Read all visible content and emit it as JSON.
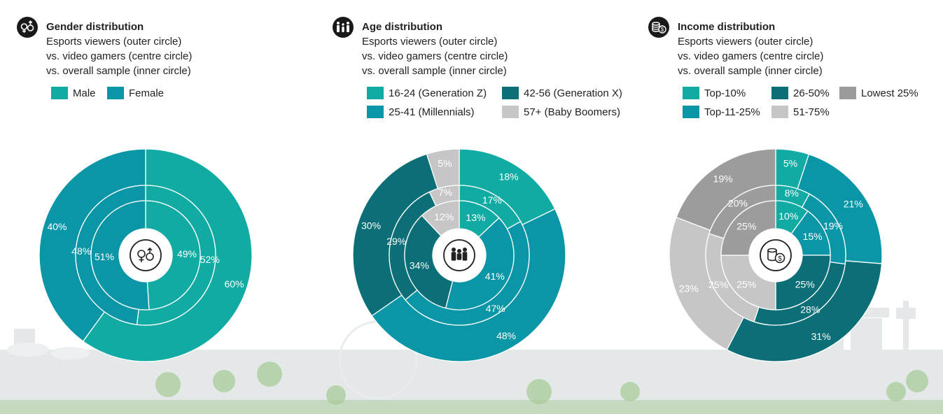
{
  "colors": {
    "teal_light": "#11ABA4",
    "teal_mid": "#0A96A6",
    "teal_dark": "#0C6F78",
    "grey_light": "#C6C6C6",
    "grey_mid": "#9C9C9C",
    "skyline": "#E4E8E8",
    "greenery": "#A9CC9B"
  },
  "gender": {
    "title": "Gender distribution",
    "subtitle": [
      "Esports viewers (outer circle)",
      "vs. video gamers (centre circle)",
      "vs. overall sample (inner circle)"
    ],
    "legend": [
      {
        "label": "Male"
      },
      {
        "label": "Female"
      }
    ],
    "center_icon": "gender-symbols-icon"
  },
  "age": {
    "title": "Age distribution",
    "subtitle": [
      "Esports viewers (outer circle)",
      "vs. video gamers (centre circle)",
      "vs. overall sample (inner circle)"
    ],
    "legend": [
      {
        "label": "16-24 (Generation Z)"
      },
      {
        "label": "42-56 (Generation X)"
      },
      {
        "label": "25-41 (Millennials)"
      },
      {
        "label": "57+ (Baby Boomers)"
      }
    ],
    "center_icon": "family-icon"
  },
  "income": {
    "title": "Income distribution",
    "subtitle": [
      "Esports viewers (outer circle)",
      "vs. video gamers (centre circle)",
      "vs. overall sample (inner circle)"
    ],
    "legend": [
      {
        "label": "Top-10%"
      },
      {
        "label": "26-50%"
      },
      {
        "label": "Lowest 25%"
      },
      {
        "label": "Top-11-25%"
      },
      {
        "label": "51-75%"
      }
    ],
    "center_icon": "coins-icon"
  },
  "chart_data": [
    {
      "type": "pie",
      "title": "Gender distribution",
      "categories": [
        "Male",
        "Female"
      ],
      "colors": [
        "#11ABA4",
        "#0A96A6"
      ],
      "series": [
        {
          "name": "Esports viewers (outer circle)",
          "values": [
            60,
            40
          ],
          "labels": [
            "60%",
            "40%"
          ]
        },
        {
          "name": "video gamers (centre circle)",
          "values": [
            52,
            48
          ],
          "labels": [
            "52%",
            "48%"
          ]
        },
        {
          "name": "overall sample (inner circle)",
          "values": [
            49,
            51
          ],
          "labels": [
            "49%",
            "51%"
          ]
        }
      ]
    },
    {
      "type": "pie",
      "title": "Age distribution",
      "categories": [
        "16-24 (Generation Z)",
        "25-41 (Millennials)",
        "42-56 (Generation X)",
        "57+ (Baby Boomers)"
      ],
      "colors": [
        "#11ABA4",
        "#0A96A6",
        "#0C6F78",
        "#C6C6C6"
      ],
      "series": [
        {
          "name": "Esports viewers (outer circle)",
          "values": [
            18,
            48,
            30,
            5
          ],
          "labels": [
            "18%",
            "48%",
            "30%",
            "5%"
          ]
        },
        {
          "name": "video gamers (centre circle)",
          "values": [
            17,
            47,
            29,
            7
          ],
          "labels": [
            "17%",
            "47%",
            "29%",
            "7%"
          ]
        },
        {
          "name": "overall sample (inner circle)",
          "values": [
            13,
            41,
            34,
            12
          ],
          "labels": [
            "13%",
            "41%",
            "34%",
            "12%"
          ]
        }
      ]
    },
    {
      "type": "pie",
      "title": "Income distribution",
      "categories": [
        "Top-10%",
        "Top-11-25%",
        "26-50%",
        "51-75%",
        "Lowest 25%"
      ],
      "colors": [
        "#11ABA4",
        "#0A96A6",
        "#0C6F78",
        "#C6C6C6",
        "#9C9C9C"
      ],
      "series": [
        {
          "name": "Esports viewers (outer circle)",
          "values": [
            5,
            21,
            31,
            23,
            19
          ],
          "labels": [
            "5%",
            "21%",
            "31%",
            "23%",
            "19%"
          ]
        },
        {
          "name": "video gamers (centre circle)",
          "values": [
            8,
            19,
            28,
            25,
            20
          ],
          "labels": [
            "8%",
            "19%",
            "28%",
            "25%",
            "20%"
          ]
        },
        {
          "name": "overall sample (inner circle)",
          "values": [
            10,
            15,
            25,
            25,
            25
          ],
          "labels": [
            "10%",
            "15%",
            "25%",
            "25%",
            "25%"
          ]
        }
      ]
    }
  ]
}
